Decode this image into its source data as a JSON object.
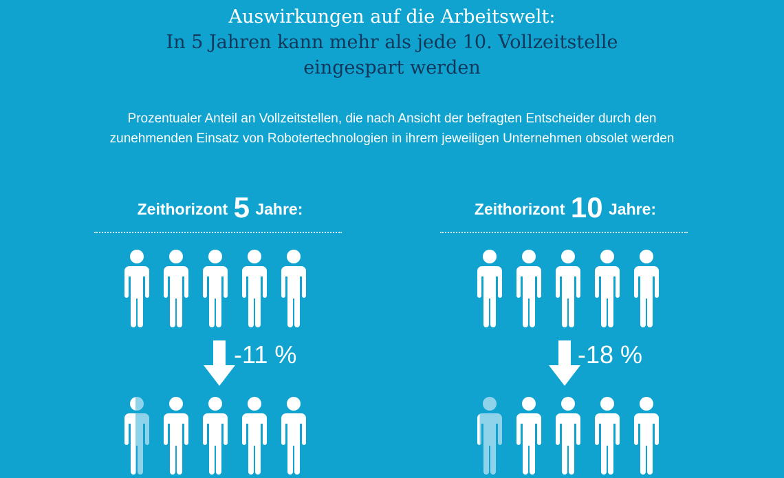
{
  "header": {
    "title_line1": "Auswirkungen auf die Arbeitswelt:",
    "title_line2": "In 5 Jahren kann mehr als jede 10. Vollzeitstelle",
    "title_line3": "eingespart werden"
  },
  "subtitle": {
    "line1": "Prozentualer Anteil an Vollzeitstellen, die nach Ansicht der befragten Entscheider durch den",
    "line2": "zunehmenden Einsatz von Robotertechnologien in ihrem jeweiligen Unternehmen obsolet werden"
  },
  "colors": {
    "background": "#11a3cf",
    "title_dark": "#12375a",
    "figure": "#ffffff",
    "figure_faded": "#8ed3ea"
  },
  "chart_data": {
    "type": "pictogram",
    "unit": "%",
    "figures_per_row": 5,
    "panels": [
      {
        "label_prefix": "Zeithorizont",
        "horizon": "5",
        "label_suffix": "Jahre:",
        "value": -11,
        "value_label": "-11 %"
      },
      {
        "label_prefix": "Zeithorizont",
        "horizon": "10",
        "label_suffix": "Jahre:",
        "value": -18,
        "value_label": "-18 %"
      }
    ]
  }
}
